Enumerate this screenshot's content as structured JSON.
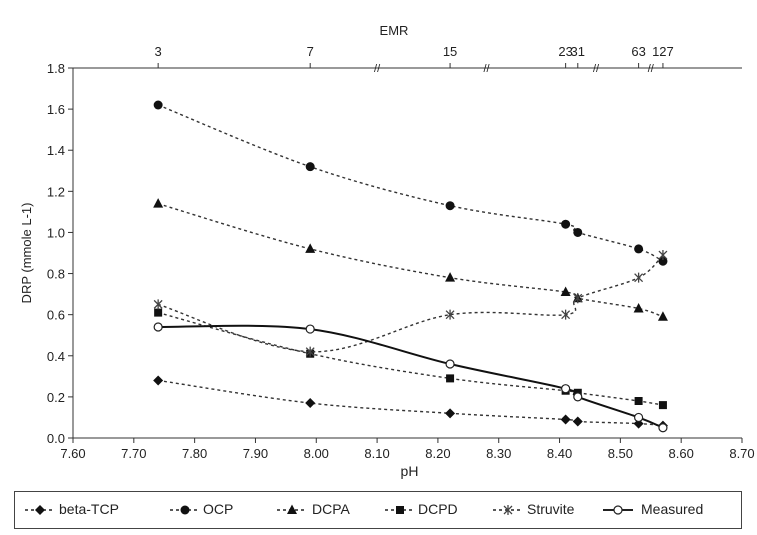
{
  "chart_data": {
    "type": "line",
    "title": "",
    "xlabel": "pH",
    "ylabel": "DRP (mmole L-1)",
    "top_axis_label": "EMR",
    "xlim": [
      7.6,
      8.7
    ],
    "ylim": [
      0.0,
      1.8
    ],
    "x_ticks": [
      "7.60",
      "7.70",
      "7.80",
      "7.90",
      "8.00",
      "8.10",
      "8.20",
      "8.30",
      "8.40",
      "8.50",
      "8.60",
      "8.70"
    ],
    "y_ticks": [
      "0.0",
      "0.2",
      "0.4",
      "0.6",
      "0.8",
      "1.0",
      "1.2",
      "1.4",
      "1.6",
      "1.8"
    ],
    "top_ticks": [
      {
        "label": "3",
        "x": 7.74
      },
      {
        "label": "7",
        "x": 7.99
      },
      {
        "label": "15",
        "x": 8.22
      },
      {
        "label": "23",
        "x": 8.41
      },
      {
        "label": "31",
        "x": 8.43
      },
      {
        "label": "63",
        "x": 8.53
      },
      {
        "label": "127",
        "x": 8.57
      }
    ],
    "grid": false,
    "legend_position": "bottom",
    "series": [
      {
        "name": "beta-TCP",
        "marker": "diamond",
        "style": "dashed",
        "x": [
          7.74,
          7.99,
          8.22,
          8.41,
          8.43,
          8.53,
          8.57
        ],
        "y": [
          0.28,
          0.17,
          0.12,
          0.09,
          0.08,
          0.07,
          0.06
        ]
      },
      {
        "name": "OCP",
        "marker": "circle",
        "style": "dashed",
        "x": [
          7.74,
          7.99,
          8.22,
          8.41,
          8.43,
          8.53,
          8.57
        ],
        "y": [
          1.62,
          1.32,
          1.13,
          1.04,
          1.0,
          0.92,
          0.86
        ]
      },
      {
        "name": "DCPA",
        "marker": "triangle",
        "style": "dashed",
        "x": [
          7.74,
          7.99,
          8.22,
          8.41,
          8.43,
          8.53,
          8.57
        ],
        "y": [
          1.14,
          0.92,
          0.78,
          0.71,
          0.68,
          0.63,
          0.59
        ]
      },
      {
        "name": "DCPD",
        "marker": "square",
        "style": "dashed",
        "x": [
          7.74,
          7.99,
          8.22,
          8.41,
          8.43,
          8.53,
          8.57
        ],
        "y": [
          0.61,
          0.41,
          0.29,
          0.23,
          0.22,
          0.18,
          0.16
        ]
      },
      {
        "name": "Struvite",
        "marker": "star",
        "style": "dashed",
        "x": [
          7.74,
          7.99,
          8.22,
          8.41,
          8.43,
          8.53,
          8.57
        ],
        "y": [
          0.65,
          0.42,
          0.6,
          0.6,
          0.68,
          0.78,
          0.89
        ]
      },
      {
        "name": "Measured",
        "marker": "open-circle",
        "style": "solid",
        "x": [
          7.74,
          7.99,
          8.22,
          8.41,
          8.43,
          8.53,
          8.57
        ],
        "y": [
          0.54,
          0.53,
          0.36,
          0.24,
          0.2,
          0.1,
          0.05
        ]
      }
    ]
  }
}
